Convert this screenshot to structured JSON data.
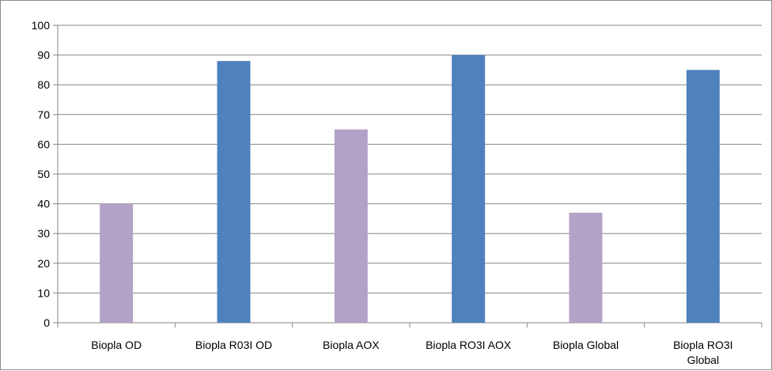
{
  "chart_data": {
    "type": "bar",
    "title": "",
    "xlabel": "",
    "ylabel": "",
    "ylim": [
      0,
      100
    ],
    "yticks": [
      0,
      10,
      20,
      30,
      40,
      50,
      60,
      70,
      80,
      90,
      100
    ],
    "grid": true,
    "legend": "none",
    "categories": [
      [
        "Biopla OD"
      ],
      [
        "Biopla R03I OD"
      ],
      [
        "Biopla AOX"
      ],
      [
        "Biopla RO3I AOX"
      ],
      [
        "Biopla Global"
      ],
      [
        "Biopla RO3I",
        "Global"
      ]
    ],
    "values": [
      40,
      88,
      65,
      90,
      37,
      85
    ],
    "bar_colors": [
      "#b3a2c7",
      "#4f81bd",
      "#b3a2c7",
      "#4f81bd",
      "#b3a2c7",
      "#4f81bd"
    ]
  }
}
